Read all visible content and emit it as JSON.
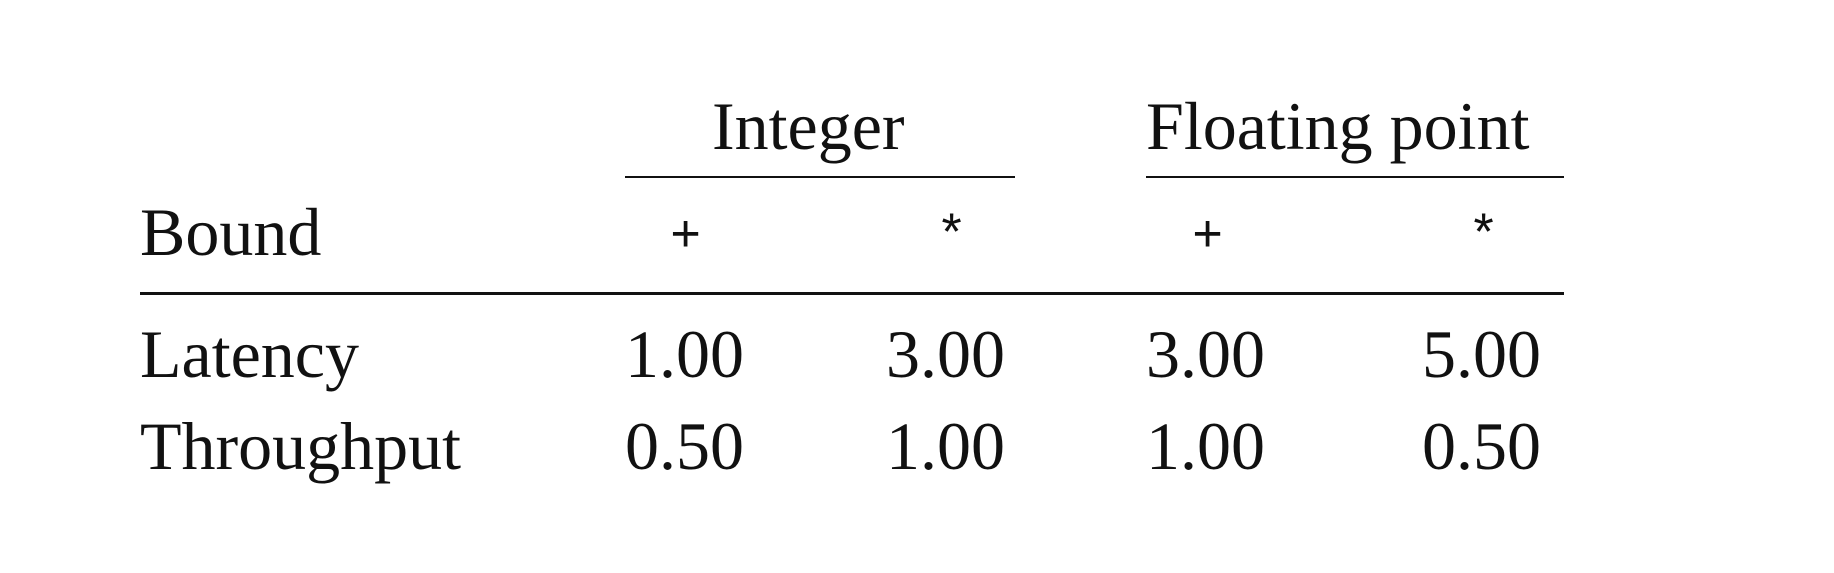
{
  "table": {
    "groups": {
      "integer": "Integer",
      "floating_point": "Floating point"
    },
    "header": {
      "label": "Bound",
      "ops": [
        "+",
        "*",
        "+",
        "*"
      ]
    },
    "rows": [
      {
        "label": "Latency",
        "values": [
          "1.00",
          "3.00",
          "3.00",
          "5.00"
        ]
      },
      {
        "label": "Throughput",
        "values": [
          "0.50",
          "1.00",
          "1.00",
          "0.50"
        ]
      }
    ]
  }
}
